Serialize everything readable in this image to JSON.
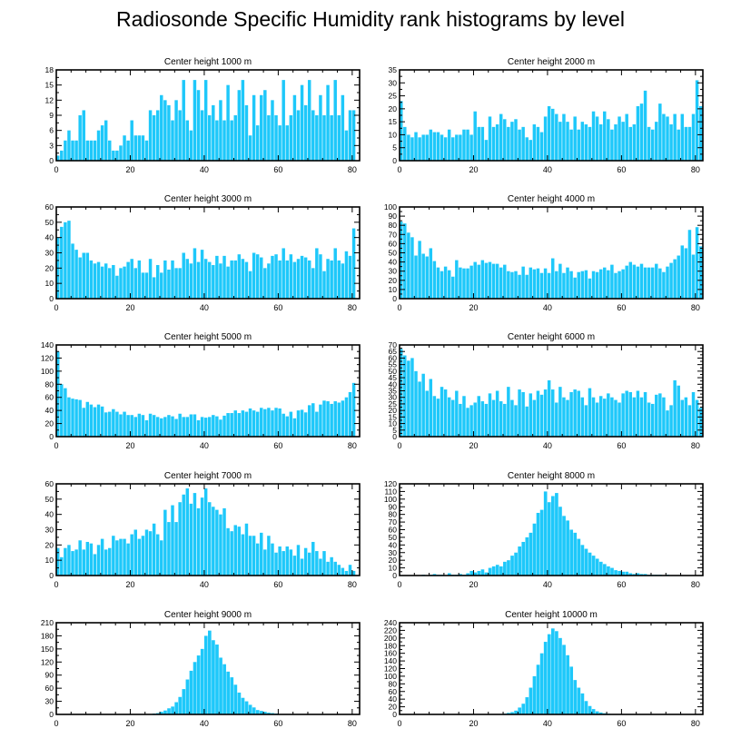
{
  "title": "Radiosonde Specific Humidity rank histograms by level",
  "bar_color": "#1ec8fa",
  "chart_data": [
    {
      "type": "bar",
      "title": "Center height 1000 m",
      "xlabel": "",
      "ylabel": "",
      "xlim": [
        0,
        82
      ],
      "ylim": [
        0,
        18
      ],
      "xticks": [
        0,
        20,
        40,
        60,
        80
      ],
      "yticks": [
        0,
        3,
        6,
        9,
        12,
        15,
        18
      ],
      "values": [
        1,
        2,
        4,
        6,
        4,
        4,
        9,
        10,
        4,
        4,
        4,
        6,
        7,
        8,
        4,
        2,
        2,
        3,
        5,
        4,
        8,
        5,
        5,
        5,
        4,
        10,
        9,
        10,
        13,
        12,
        11,
        8,
        12,
        10,
        16,
        8,
        6,
        16,
        14,
        10,
        16,
        9,
        11,
        8,
        12,
        8,
        15,
        8,
        9,
        14,
        16,
        11,
        5,
        13,
        7,
        13,
        14,
        9,
        12,
        9,
        7,
        16,
        7,
        9,
        13,
        10,
        15,
        11,
        16,
        10,
        9,
        13,
        9,
        15,
        9,
        16,
        9,
        13,
        6,
        10,
        10
      ],
      "bar_w": 0.85
    },
    {
      "type": "bar",
      "title": "Center height 2000 m",
      "xlabel": "",
      "ylabel": "",
      "xlim": [
        0,
        82
      ],
      "ylim": [
        0,
        35
      ],
      "xticks": [
        0,
        20,
        40,
        60,
        80
      ],
      "yticks": [
        0,
        5,
        10,
        15,
        20,
        25,
        30,
        35
      ],
      "values": [
        23,
        13,
        10,
        9,
        11,
        9,
        10,
        10,
        12,
        11,
        11,
        10,
        9,
        12,
        9,
        10,
        10,
        12,
        12,
        10,
        19,
        13,
        13,
        8,
        17,
        13,
        14,
        18,
        16,
        13,
        15,
        16,
        12,
        13,
        9,
        8,
        14,
        13,
        11,
        17,
        21,
        20,
        18,
        15,
        18,
        15,
        12,
        17,
        12,
        15,
        14,
        13,
        19,
        17,
        14,
        19,
        16,
        12,
        14,
        17,
        15,
        18,
        13,
        14,
        21,
        22,
        27,
        13,
        12,
        15,
        22,
        18,
        17,
        14,
        18,
        12,
        18,
        13,
        13,
        18,
        31,
        21
      ],
      "bar_w": 0.85
    },
    {
      "type": "bar",
      "title": "Center height 3000 m",
      "xlabel": "",
      "ylabel": "",
      "xlim": [
        0,
        82
      ],
      "ylim": [
        0,
        60
      ],
      "xticks": [
        0,
        20,
        40,
        60,
        80
      ],
      "yticks": [
        0,
        10,
        20,
        30,
        40,
        50,
        60
      ],
      "values": [
        40,
        47,
        50,
        51,
        36,
        32,
        27,
        30,
        30,
        25,
        23,
        24,
        21,
        23,
        20,
        22,
        15,
        20,
        21,
        24,
        26,
        20,
        25,
        17,
        17,
        26,
        14,
        22,
        17,
        25,
        19,
        25,
        20,
        20,
        30,
        26,
        23,
        33,
        24,
        32,
        26,
        24,
        22,
        28,
        23,
        28,
        21,
        25,
        25,
        29,
        26,
        24,
        18,
        30,
        29,
        27,
        20,
        23,
        28,
        29,
        25,
        33,
        25,
        29,
        24,
        26,
        28,
        27,
        25,
        20,
        33,
        29,
        18,
        26,
        25,
        33,
        25,
        23,
        31,
        28,
        46
      ],
      "bar_w": 0.85
    },
    {
      "type": "bar",
      "title": "Center height 4000 m",
      "xlabel": "",
      "ylabel": "",
      "xlim": [
        0,
        82
      ],
      "ylim": [
        0,
        100
      ],
      "xticks": [
        0,
        20,
        40,
        60,
        80
      ],
      "yticks": [
        0,
        10,
        20,
        30,
        40,
        50,
        60,
        70,
        80,
        90,
        100
      ],
      "values": [
        84,
        82,
        72,
        67,
        47,
        63,
        49,
        46,
        55,
        41,
        34,
        30,
        35,
        31,
        24,
        42,
        34,
        33,
        33,
        36,
        40,
        37,
        42,
        39,
        40,
        38,
        38,
        34,
        37,
        30,
        29,
        30,
        26,
        35,
        26,
        34,
        32,
        33,
        28,
        33,
        28,
        44,
        30,
        38,
        28,
        34,
        30,
        23,
        29,
        30,
        31,
        22,
        30,
        29,
        32,
        34,
        31,
        37,
        28,
        30,
        32,
        36,
        40,
        37,
        35,
        38,
        34,
        34,
        34,
        38,
        33,
        29,
        35,
        39,
        43,
        47,
        58,
        55,
        75,
        48,
        78,
        57
      ],
      "bar_w": 0.85
    },
    {
      "type": "bar",
      "title": "Center height 5000 m",
      "xlabel": "",
      "ylabel": "",
      "xlim": [
        0,
        82
      ],
      "ylim": [
        0,
        140
      ],
      "xticks": [
        0,
        20,
        40,
        60,
        80
      ],
      "yticks": [
        0,
        20,
        40,
        60,
        80,
        100,
        120,
        140
      ],
      "values": [
        130,
        80,
        74,
        60,
        58,
        57,
        56,
        44,
        53,
        49,
        45,
        49,
        46,
        37,
        38,
        42,
        38,
        34,
        38,
        33,
        33,
        30,
        35,
        33,
        25,
        35,
        33,
        30,
        28,
        30,
        33,
        31,
        27,
        35,
        30,
        30,
        34,
        34,
        25,
        30,
        29,
        30,
        33,
        31,
        26,
        32,
        36,
        36,
        40,
        36,
        40,
        38,
        43,
        40,
        38,
        44,
        42,
        44,
        40,
        44,
        43,
        35,
        31,
        38,
        28,
        40,
        41,
        37,
        48,
        51,
        38,
        49,
        55,
        54,
        50,
        54,
        52,
        55,
        60,
        68,
        82
      ],
      "bar_w": 0.85
    },
    {
      "type": "bar",
      "title": "Center height 6000 m",
      "xlabel": "",
      "ylabel": "",
      "xlim": [
        0,
        82
      ],
      "ylim": [
        0,
        70
      ],
      "xticks": [
        0,
        20,
        40,
        60,
        80
      ],
      "yticks": [
        0,
        5,
        10,
        15,
        20,
        25,
        30,
        35,
        40,
        45,
        50,
        55,
        60,
        65,
        70
      ],
      "values": [
        67,
        62,
        58,
        60,
        50,
        42,
        48,
        35,
        44,
        31,
        29,
        38,
        36,
        30,
        28,
        35,
        25,
        31,
        22,
        24,
        26,
        31,
        27,
        25,
        33,
        28,
        35,
        27,
        25,
        38,
        28,
        24,
        36,
        34,
        23,
        33,
        28,
        35,
        32,
        36,
        43,
        36,
        26,
        38,
        30,
        28,
        34,
        36,
        35,
        30,
        24,
        37,
        30,
        26,
        31,
        29,
        33,
        30,
        28,
        26,
        33,
        35,
        34,
        30,
        35,
        30,
        34,
        26,
        25,
        32,
        33,
        30,
        20,
        24,
        43,
        39,
        28,
        30,
        24,
        34,
        28,
        22
      ],
      "bar_w": 0.85
    },
    {
      "type": "bar",
      "title": "Center height 7000 m",
      "xlabel": "",
      "ylabel": "",
      "xlim": [
        0,
        82
      ],
      "ylim": [
        0,
        60
      ],
      "xticks": [
        0,
        20,
        40,
        60,
        80
      ],
      "yticks": [
        0,
        10,
        20,
        30,
        40,
        50,
        60
      ],
      "values": [
        18,
        12,
        18,
        20,
        16,
        17,
        23,
        17,
        22,
        21,
        14,
        20,
        24,
        17,
        18,
        26,
        23,
        24,
        24,
        21,
        27,
        30,
        24,
        26,
        30,
        29,
        34,
        27,
        23,
        43,
        35,
        46,
        35,
        48,
        53,
        57,
        47,
        54,
        44,
        51,
        57,
        48,
        45,
        43,
        40,
        44,
        31,
        29,
        33,
        32,
        27,
        34,
        26,
        26,
        21,
        28,
        17,
        26,
        21,
        15,
        19,
        16,
        19,
        17,
        13,
        20,
        11,
        18,
        15,
        22,
        16,
        11,
        16,
        9,
        12,
        9,
        7,
        5,
        3,
        7,
        3
      ],
      "bar_w": 0.85
    },
    {
      "type": "bar",
      "title": "Center height 8000 m",
      "xlabel": "",
      "ylabel": "",
      "xlim": [
        0,
        82
      ],
      "ylim": [
        0,
        120
      ],
      "xticks": [
        0,
        20,
        40,
        60,
        80
      ],
      "yticks": [
        0,
        10,
        20,
        30,
        40,
        50,
        60,
        70,
        80,
        90,
        100,
        110,
        120
      ],
      "values": [
        0,
        0,
        0,
        0,
        0,
        0,
        1,
        0,
        1,
        2,
        1,
        1,
        0,
        3,
        1,
        1,
        2,
        1,
        3,
        6,
        4,
        6,
        8,
        4,
        10,
        12,
        14,
        12,
        18,
        20,
        26,
        30,
        38,
        44,
        50,
        56,
        68,
        82,
        86,
        110,
        96,
        104,
        108,
        90,
        78,
        72,
        60,
        56,
        48,
        40,
        35,
        30,
        26,
        22,
        18,
        15,
        12,
        10,
        7,
        6,
        5,
        5,
        3,
        2,
        3,
        2,
        2,
        1,
        1,
        1,
        1,
        0,
        1,
        0,
        0,
        0,
        0,
        0,
        0,
        0,
        0
      ],
      "bar_w": 0.9
    },
    {
      "type": "bar",
      "title": "Center height 9000 m",
      "xlabel": "",
      "ylabel": "",
      "xlim": [
        0,
        82
      ],
      "ylim": [
        0,
        210
      ],
      "xticks": [
        0,
        20,
        40,
        60,
        80
      ],
      "yticks": [
        0,
        30,
        60,
        90,
        120,
        150,
        180,
        210
      ],
      "values": [
        0,
        0,
        0,
        0,
        0,
        0,
        0,
        0,
        0,
        0,
        0,
        0,
        0,
        0,
        0,
        0,
        0,
        0,
        0,
        0,
        0,
        0,
        0,
        0,
        0,
        1,
        2,
        3,
        6,
        9,
        14,
        18,
        28,
        40,
        58,
        80,
        100,
        120,
        135,
        150,
        180,
        192,
        170,
        160,
        130,
        115,
        98,
        85,
        68,
        50,
        38,
        30,
        22,
        16,
        10,
        8,
        6,
        4,
        3,
        2,
        1,
        1,
        0,
        0,
        0,
        0,
        0,
        0,
        0,
        0,
        0,
        0,
        0,
        0,
        0,
        0,
        0,
        0,
        0,
        0,
        0
      ],
      "bar_w": 0.9
    },
    {
      "type": "bar",
      "title": "Center height 10000 m",
      "xlabel": "",
      "ylabel": "",
      "xlim": [
        0,
        82
      ],
      "ylim": [
        0,
        240
      ],
      "xticks": [
        0,
        20,
        40,
        60,
        80
      ],
      "yticks": [
        0,
        20,
        40,
        60,
        80,
        100,
        120,
        140,
        160,
        180,
        200,
        220,
        240
      ],
      "values": [
        0,
        0,
        0,
        0,
        0,
        0,
        0,
        0,
        0,
        0,
        0,
        0,
        0,
        0,
        0,
        0,
        0,
        0,
        0,
        0,
        0,
        0,
        0,
        0,
        0,
        0,
        0,
        1,
        2,
        4,
        6,
        10,
        18,
        28,
        45,
        70,
        100,
        130,
        160,
        190,
        210,
        225,
        218,
        200,
        182,
        155,
        125,
        90,
        70,
        55,
        35,
        22,
        14,
        8,
        5,
        3,
        2,
        1,
        1,
        0,
        0,
        0,
        0,
        0,
        0,
        0,
        0,
        0,
        0,
        0,
        0,
        0,
        0,
        0,
        0,
        0,
        0,
        0,
        0,
        0,
        0
      ],
      "bar_w": 0.9
    }
  ]
}
